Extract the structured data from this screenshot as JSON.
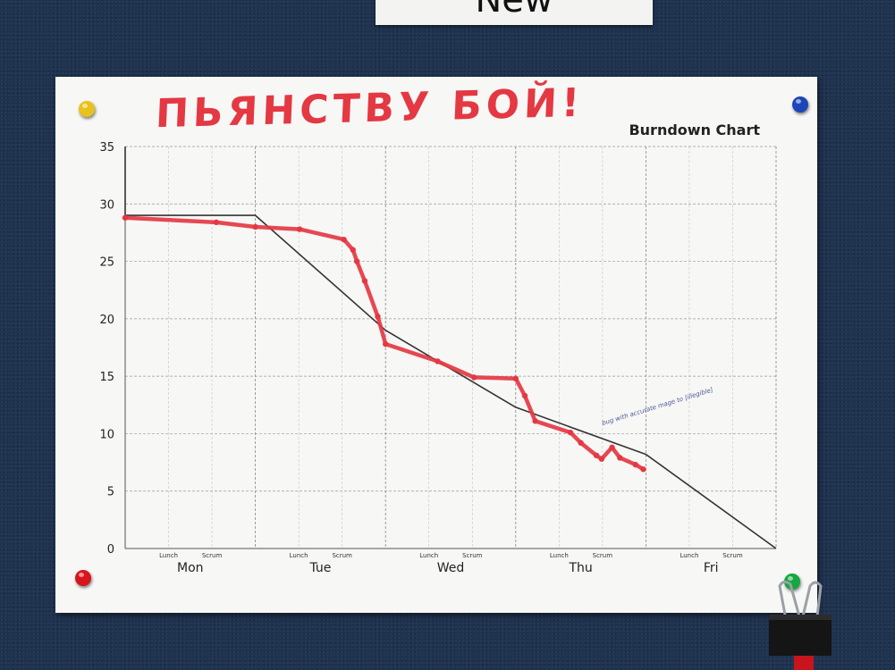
{
  "board": {
    "sign_text": "New",
    "handwritten_title": "ПЬЯНСТВУ БОЙ!",
    "annotation_note": "bug with accurate mage to [illegible]"
  },
  "colors": {
    "board": "#1f3350",
    "paper": "#f7f7f5",
    "actual_line": "#e43843",
    "ideal_line": "#333333",
    "annotation_ink": "#4a5a9a",
    "pin_yellow": "#e8c21c",
    "pin_blue": "#1c46b8",
    "pin_red": "#d8141c",
    "pin_green": "#14a83e"
  },
  "chart_data": {
    "type": "line",
    "title": "Burndown Chart",
    "xlabel": "",
    "ylabel": "",
    "ylim": [
      0,
      35
    ],
    "xlim": [
      0,
      5
    ],
    "yticks": [
      0,
      5,
      10,
      15,
      20,
      25,
      30,
      35
    ],
    "days": [
      "Mon",
      "Tue",
      "Wed",
      "Thu",
      "Fri"
    ],
    "sub_ticks": [
      "Lunch",
      "Scrum"
    ],
    "grid": true,
    "series": [
      {
        "kind": "ideal",
        "points": [
          [
            0,
            35
          ],
          [
            0,
            29
          ],
          [
            1,
            29
          ],
          [
            2,
            19
          ],
          [
            3,
            12.3
          ],
          [
            4,
            8.2
          ],
          [
            5,
            0
          ]
        ]
      },
      {
        "kind": "actual",
        "points": [
          [
            0,
            28.8
          ],
          [
            0.7,
            28.4
          ],
          [
            1,
            28.0
          ],
          [
            1.34,
            27.8
          ],
          [
            1.68,
            26.9
          ],
          [
            1.75,
            26.0
          ],
          [
            1.78,
            25.0
          ],
          [
            1.84,
            23.3
          ],
          [
            1.94,
            20.2
          ],
          [
            2.0,
            17.8
          ],
          [
            2.4,
            16.3
          ],
          [
            2.68,
            14.9
          ],
          [
            3.0,
            14.8
          ],
          [
            3.07,
            13.3
          ],
          [
            3.15,
            11.1
          ],
          [
            3.42,
            10.1
          ],
          [
            3.5,
            9.2
          ],
          [
            3.62,
            8.1
          ],
          [
            3.66,
            7.8
          ],
          [
            3.74,
            8.8
          ],
          [
            3.8,
            7.9
          ],
          [
            3.92,
            7.3
          ],
          [
            3.98,
            6.9
          ]
        ]
      }
    ]
  }
}
